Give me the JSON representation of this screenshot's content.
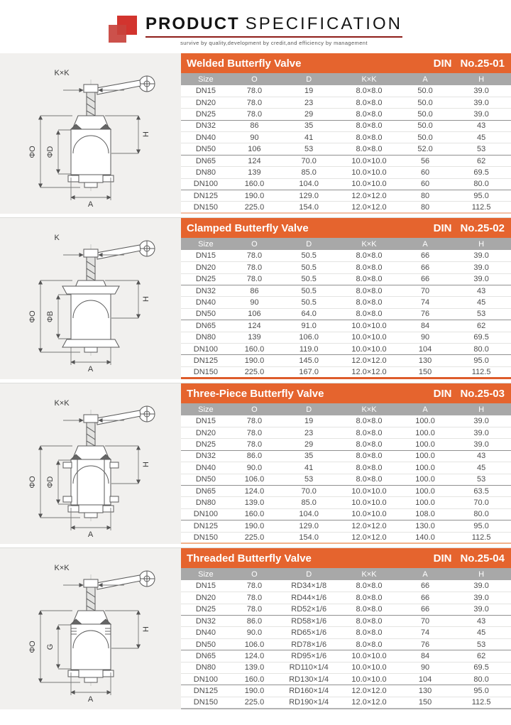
{
  "header": {
    "title_bold": "PRODUCT",
    "title_light": "SPECIFICATION",
    "tagline": "survive by quality,development by credit,and efficiency by management"
  },
  "colors": {
    "accent_orange": "#e5642e",
    "header_gray": "#a8a8a8",
    "logo_red": "#d2342e",
    "rule_red": "#8e1d18"
  },
  "columns": [
    "Size",
    "O",
    "D",
    "K×K",
    "A",
    "H"
  ],
  "sections": [
    {
      "title": "Welded Butterfly Valve",
      "din_label": "DIN",
      "din_no": "No.25-01",
      "drawing": {
        "top": "K×K",
        "outer_left": "ΦO",
        "inner_left": "ΦD",
        "right": "H",
        "bottom": "A"
      },
      "rows": [
        [
          "DN15",
          "78.0",
          "19",
          "8.0×8.0",
          "50.0",
          "39.0"
        ],
        [
          "DN20",
          "78.0",
          "23",
          "8.0×8.0",
          "50.0",
          "39.0"
        ],
        [
          "DN25",
          "78.0",
          "29",
          "8.0×8.0",
          "50.0",
          "39.0"
        ],
        [
          "DN32",
          "86",
          "35",
          "8.0×8.0",
          "50.0",
          "43"
        ],
        [
          "DN40",
          "90",
          "41",
          "8.0×8.0",
          "50.0",
          "45"
        ],
        [
          "DN50",
          "106",
          "53",
          "8.0×8.0",
          "52.0",
          "53"
        ],
        [
          "DN65",
          "124",
          "70.0",
          "10.0×10.0",
          "56",
          "62"
        ],
        [
          "DN80",
          "139",
          "85.0",
          "10.0×10.0",
          "60",
          "69.5"
        ],
        [
          "DN100",
          "160.0",
          "104.0",
          "10.0×10.0",
          "60",
          "80.0"
        ],
        [
          "DN125",
          "190.0",
          "129.0",
          "12.0×12.0",
          "80",
          "95.0"
        ],
        [
          "DN150",
          "225.0",
          "154.0",
          "12.0×12.0",
          "80",
          "112.5"
        ]
      ]
    },
    {
      "title": "Clamped Butterfly Valve",
      "din_label": "DIN",
      "din_no": "No.25-02",
      "drawing": {
        "top": "K",
        "outer_left": "ΦO",
        "inner_left": "ΦB",
        "right": "H",
        "bottom": "A"
      },
      "rows": [
        [
          "DN15",
          "78.0",
          "50.5",
          "8.0×8.0",
          "66",
          "39.0"
        ],
        [
          "DN20",
          "78.0",
          "50.5",
          "8.0×8.0",
          "66",
          "39.0"
        ],
        [
          "DN25",
          "78.0",
          "50.5",
          "8.0×8.0",
          "66",
          "39.0"
        ],
        [
          "DN32",
          "86",
          "50.5",
          "8.0×8.0",
          "70",
          "43"
        ],
        [
          "DN40",
          "90",
          "50.5",
          "8.0×8.0",
          "74",
          "45"
        ],
        [
          "DN50",
          "106",
          "64.0",
          "8.0×8.0",
          "76",
          "53"
        ],
        [
          "DN65",
          "124",
          "91.0",
          "10.0×10.0",
          "84",
          "62"
        ],
        [
          "DN80",
          "139",
          "106.0",
          "10.0×10.0",
          "90",
          "69.5"
        ],
        [
          "DN100",
          "160.0",
          "119.0",
          "10.0×10.0",
          "104",
          "80.0"
        ],
        [
          "DN125",
          "190.0",
          "145.0",
          "12.0×12.0",
          "130",
          "95.0"
        ],
        [
          "DN150",
          "225.0",
          "167.0",
          "12.0×12.0",
          "150",
          "112.5"
        ]
      ]
    },
    {
      "title": "Three-Piece Butterfly Valve",
      "din_label": "DIN",
      "din_no": "No.25-03",
      "drawing": {
        "top": "K×K",
        "outer_left": "ΦO",
        "inner_left": "ΦD",
        "right": "H",
        "bottom": "A"
      },
      "rows": [
        [
          "DN15",
          "78.0",
          "19",
          "8.0×8.0",
          "100.0",
          "39.0"
        ],
        [
          "DN20",
          "78.0",
          "23",
          "8.0×8.0",
          "100.0",
          "39.0"
        ],
        [
          "DN25",
          "78.0",
          "29",
          "8.0×8.0",
          "100.0",
          "39.0"
        ],
        [
          "DN32",
          "86.0",
          "35",
          "8.0×8.0",
          "100.0",
          "43"
        ],
        [
          "DN40",
          "90.0",
          "41",
          "8.0×8.0",
          "100.0",
          "45"
        ],
        [
          "DN50",
          "106.0",
          "53",
          "8.0×8.0",
          "100.0",
          "53"
        ],
        [
          "DN65",
          "124.0",
          "70.0",
          "10.0×10.0",
          "100.0",
          "63.5"
        ],
        [
          "DN80",
          "139.0",
          "85.0",
          "10.0×10.0",
          "100.0",
          "70.0"
        ],
        [
          "DN100",
          "160.0",
          "104.0",
          "10.0×10.0",
          "108.0",
          "80.0"
        ],
        [
          "DN125",
          "190.0",
          "129.0",
          "12.0×12.0",
          "130.0",
          "95.0"
        ],
        [
          "DN150",
          "225.0",
          "154.0",
          "12.0×12.0",
          "140.0",
          "112.5"
        ]
      ]
    },
    {
      "title": "Threaded Butterfly Valve",
      "din_label": "DIN",
      "din_no": "No.25-04",
      "drawing": {
        "top": "K×K",
        "outer_left": "ΦO",
        "inner_left": "G",
        "right": "H",
        "bottom": "A"
      },
      "rows": [
        [
          "DN15",
          "78.0",
          "RD34×1/8",
          "8.0×8.0",
          "66",
          "39.0"
        ],
        [
          "DN20",
          "78.0",
          "RD44×1/6",
          "8.0×8.0",
          "66",
          "39.0"
        ],
        [
          "DN25",
          "78.0",
          "RD52×1/6",
          "8.0×8.0",
          "66",
          "39.0"
        ],
        [
          "DN32",
          "86.0",
          "RD58×1/6",
          "8.0×8.0",
          "70",
          "43"
        ],
        [
          "DN40",
          "90.0",
          "RD65×1/6",
          "8.0×8.0",
          "74",
          "45"
        ],
        [
          "DN50",
          "106.0",
          "RD78×1/6",
          "8.0×8.0",
          "76",
          "53"
        ],
        [
          "DN65",
          "124.0",
          "RD95×1/6",
          "10.0×10.0",
          "84",
          "62"
        ],
        [
          "DN80",
          "139.0",
          "RD110×1/4",
          "10.0×10.0",
          "90",
          "69.5"
        ],
        [
          "DN100",
          "160.0",
          "RD130×1/4",
          "10.0×10.0",
          "104",
          "80.0"
        ],
        [
          "DN125",
          "190.0",
          "RD160×1/4",
          "12.0×12.0",
          "130",
          "95.0"
        ],
        [
          "DN150",
          "225.0",
          "RD190×1/4",
          "12.0×12.0",
          "150",
          "112.5"
        ]
      ]
    }
  ]
}
